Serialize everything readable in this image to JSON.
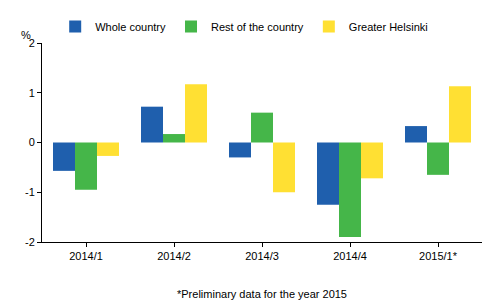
{
  "chart_data": {
    "type": "bar",
    "ylabel": "%",
    "annotation": "*Preliminary data for the year 2015",
    "categories": [
      "2014/1",
      "2014/2",
      "2014/3",
      "2014/4",
      "2015/1*"
    ],
    "series": [
      {
        "name": "Whole country",
        "color": "#1F5FAD",
        "values": [
          -0.57,
          0.72,
          -0.3,
          -1.25,
          0.33
        ]
      },
      {
        "name": "Rest of the country",
        "color": "#45B649",
        "values": [
          -0.95,
          0.17,
          0.6,
          -1.9,
          -0.65
        ]
      },
      {
        "name": "Greater Helsinki",
        "color": "#FFE033",
        "values": [
          -0.27,
          1.17,
          -1.0,
          -0.72,
          1.13
        ]
      }
    ],
    "ylim": [
      -2,
      2
    ],
    "yticks": [
      -2,
      -1,
      0,
      1,
      2
    ],
    "grid": false,
    "legend": "top"
  }
}
